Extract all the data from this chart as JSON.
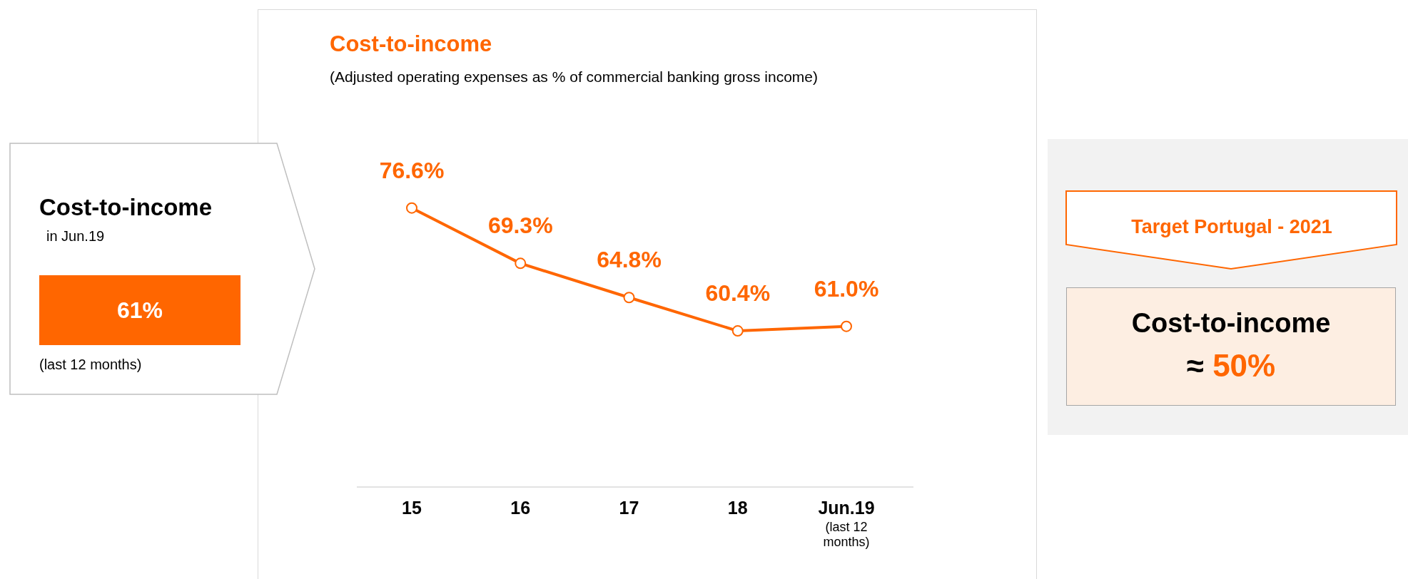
{
  "chart_data": [
    {
      "type": "other",
      "title": "Cost-to-income",
      "annotations": [
        "in Jun.19",
        "61%",
        "(last 12 months)"
      ]
    },
    {
      "type": "line",
      "title": "Cost-to-income",
      "subtitle": "(Adjusted operating expenses as % of commercial banking gross income)",
      "categories": [
        "15",
        "16",
        "17",
        "18",
        "Jun.19 (last 12 months)"
      ],
      "series": [
        {
          "color": "#ff6600",
          "values": [
            76.6,
            69.3,
            64.8,
            60.4,
            61.0
          ],
          "value_labels": [
            "76.6%",
            "69.3%",
            "64.8%",
            "60.4%",
            "61.0%"
          ]
        }
      ],
      "marker": "circle",
      "line_style": "solid"
    },
    {
      "type": "other",
      "title": "Target Portugal - 2021",
      "annotations": [
        "Cost-to-income",
        "≈ 50%"
      ]
    }
  ]
}
